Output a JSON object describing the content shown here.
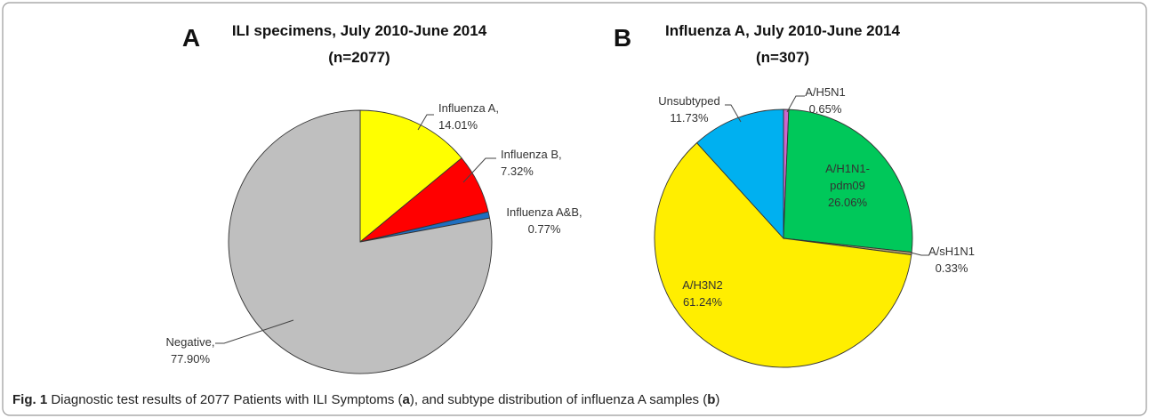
{
  "chart_data": [
    {
      "type": "pie",
      "panel": "A",
      "title": [
        "ILI specimens, July 2010-June 2014",
        "(n=2077)"
      ],
      "categories": [
        "Influenza A,",
        "Influenza B,",
        "Influenza A&B,",
        "Negative,"
      ],
      "values": [
        14.01,
        7.32,
        0.77,
        77.9
      ],
      "value_labels": [
        "14.01%",
        "7.32%",
        "0.77%",
        "77.90%"
      ],
      "colors": [
        "#ffff00",
        "#ff0000",
        "#1f6fc0",
        "#bfbfbf"
      ]
    },
    {
      "type": "pie",
      "panel": "B",
      "title": [
        "Influenza A, July 2010-June 2014",
        "(n=307)"
      ],
      "categories": [
        "A/H5N1",
        "A/H1N1-pdm09",
        "A/sH1N1",
        "A/H3N2",
        "Unsubtyped"
      ],
      "values": [
        0.65,
        26.06,
        0.33,
        61.24,
        11.73
      ],
      "value_labels": [
        "0.65%",
        "26.06%",
        "0.33%",
        "61.24%",
        "11.73%"
      ],
      "colors": [
        "#cc66cc",
        "#00c85a",
        "#b0a070",
        "#ffee00",
        "#00b0f0"
      ]
    }
  ],
  "caption": [
    {
      "text": "Fig. 1",
      "bold": true
    },
    {
      "text": " Diagnostic test results of 2077 Patients with ILI Symptoms (",
      "bold": false
    },
    {
      "text": "a",
      "bold": true
    },
    {
      "text": "), and subtype distribution of influenza A samples (",
      "bold": false
    },
    {
      "text": "b",
      "bold": true
    },
    {
      "text": ")",
      "bold": false
    }
  ]
}
